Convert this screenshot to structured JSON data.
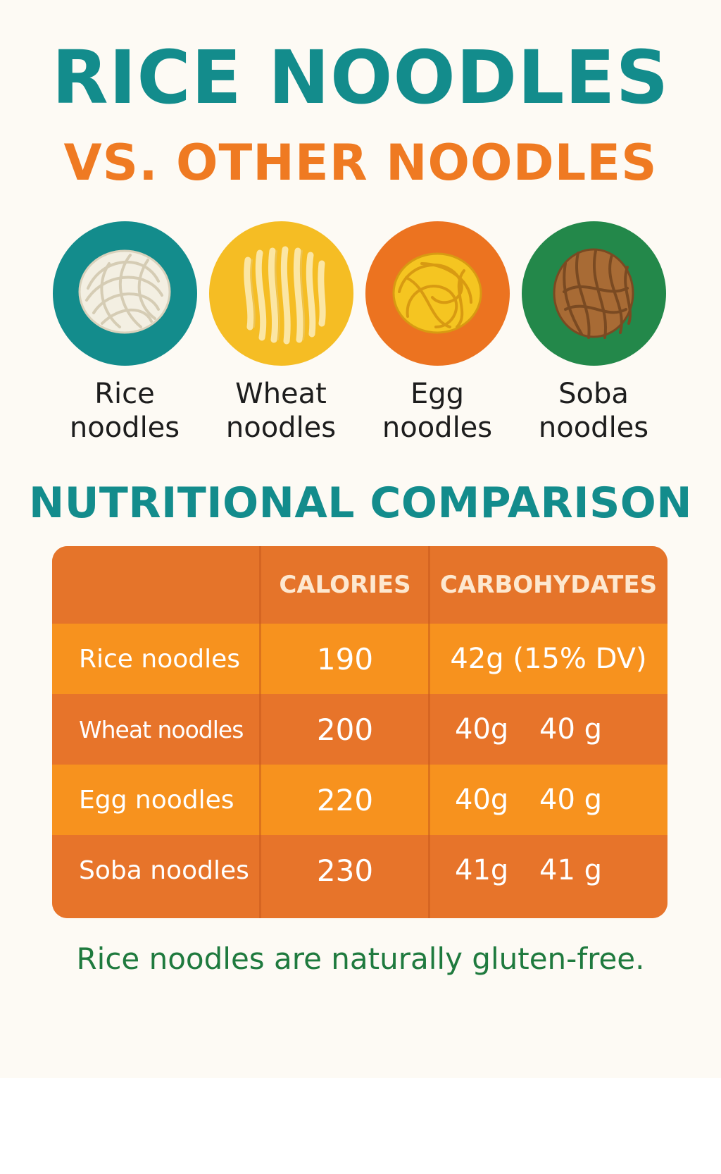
{
  "title": "RICE NOODLES",
  "subtitle": "VS. OTHER NOODLES",
  "colors": {
    "teal": "#138c8c",
    "orange": "#ef7a22",
    "green": "#1f7a3e",
    "table_header": "#e5742a",
    "row_light": "#f7921e",
    "row_dark": "#e7742a",
    "background": "#fdfaf4"
  },
  "noodles": [
    {
      "label_line1": "Rice",
      "label_line2": "noodles",
      "circle_color": "#138c8c",
      "noodle_color": "#f3efe2",
      "icon": "rice-noodles-icon"
    },
    {
      "label_line1": "Wheat",
      "label_line2": "noodles",
      "circle_color": "#f5bd24",
      "noodle_color": "#fbe6a4",
      "icon": "wheat-noodles-icon"
    },
    {
      "label_line1": "Egg",
      "label_line2": "noodles",
      "circle_color": "#ec7320",
      "noodle_color": "#f5c521",
      "icon": "egg-noodles-icon"
    },
    {
      "label_line1": "Soba",
      "label_line2": "noodles",
      "circle_color": "#23884a",
      "noodle_color": "#a86b35",
      "icon": "soba-noodles-icon"
    }
  ],
  "section_title": "NUTRITIONAL COMPARISON",
  "table": {
    "headers": [
      "",
      "CALORIES",
      "CARBOHYDATES"
    ],
    "rows": [
      {
        "name": "Rice noodles",
        "calories": "190",
        "carbs_a": "42g (15% DV)",
        "carbs_b": ""
      },
      {
        "name": "Wheat noodles",
        "calories": "200",
        "carbs_a": "40g",
        "carbs_b": "40 g"
      },
      {
        "name": "Egg noodles",
        "calories": "220",
        "carbs_a": "40g",
        "carbs_b": "40 g"
      },
      {
        "name": "Soba noodles",
        "calories": "230",
        "carbs_a": "41g",
        "carbs_b": "41 g"
      }
    ]
  },
  "footnote": "Rice noodles are naturally gluten-free."
}
